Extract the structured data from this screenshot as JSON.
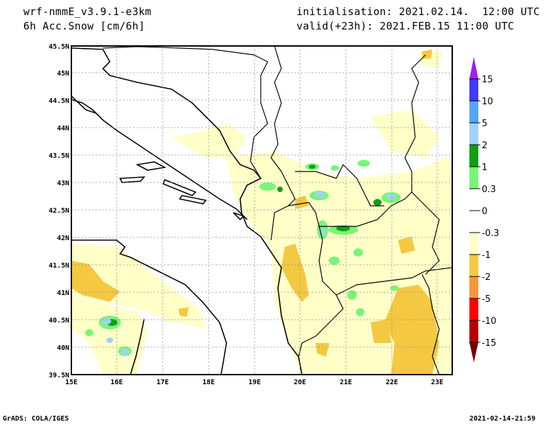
{
  "header": {
    "model": "wrf-nmmE_v3.9.1-e3km",
    "field": "6h Acc.Snow [cm/6h]",
    "init": "initialisation: 2021.02.14.  12:00 UTC",
    "valid": "valid(+23h): 2021.FEB.15 11:00 UTC"
  },
  "footer": {
    "credit": "GrADS: COLA/IGES",
    "timestamp": "2021-02-14-21:59"
  },
  "map": {
    "lon_labels": [
      "15E",
      "16E",
      "17E",
      "18E",
      "19E",
      "20E",
      "21E",
      "22E",
      "23E"
    ],
    "lat_labels": [
      "45.5N",
      "45N",
      "44.5N",
      "44N",
      "43.5N",
      "43N",
      "42.5N",
      "42N",
      "41.5N",
      "41N",
      "40.5N",
      "40N",
      "39.5N"
    ],
    "lon_range": [
      15,
      23.33
    ],
    "lat_range": [
      39.5,
      45.5
    ]
  },
  "colorbar": {
    "labels": [
      "15",
      "10",
      "5",
      "2",
      "1",
      "0.3",
      "0",
      "-0.3",
      "-1",
      "-2",
      "-5",
      "-10",
      "-15"
    ],
    "colors": [
      "#a020f0",
      "#3c3cff",
      "#55a5f5",
      "#a0d2fa",
      "#10a010",
      "#78f578",
      "#ffffff",
      "#ffffff",
      "#ffffc8",
      "#f5c841",
      "#f5963c",
      "#ff0000",
      "#b40000",
      "#780000"
    ]
  }
}
